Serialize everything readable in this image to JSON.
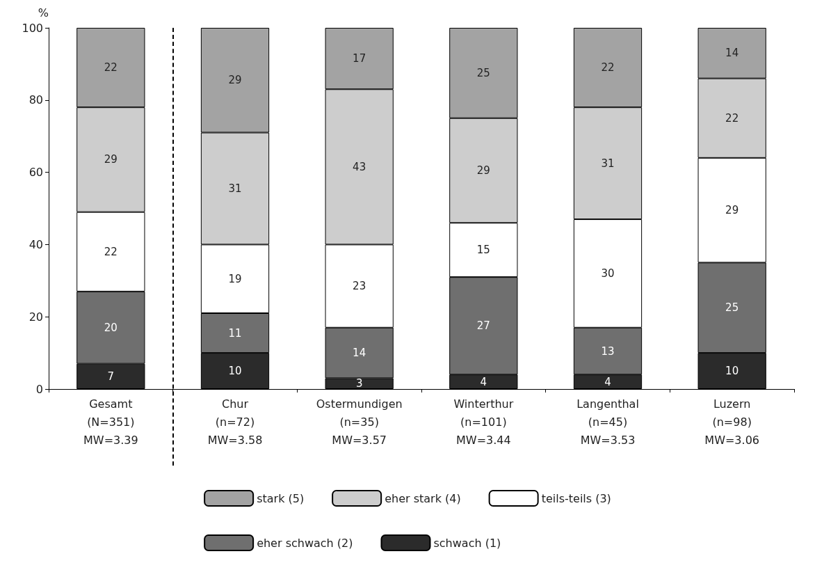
{
  "chart_data": {
    "type": "bar",
    "stacked": true,
    "ylabel": "%",
    "categories": [
      "Gesamt\n(N=351)\nMW=3.39",
      "Chur\n(n=72)\nMW=3.58",
      "Ostermundigen\n(n=35)\nMW=3.57",
      "Winterthur\n(n=101)\nMW=3.44",
      "Langenthal\n(n=45)\nMW=3.53",
      "Luzern\n(n=98)\nMW=3.06"
    ],
    "series": [
      {
        "name": "schwach (1)",
        "color": "#2b2b2b",
        "values": [
          7,
          10,
          3,
          4,
          4,
          10
        ]
      },
      {
        "name": "eher schwach (2)",
        "color": "#6f6f6f",
        "values": [
          20,
          11,
          14,
          27,
          13,
          25
        ]
      },
      {
        "name": "teils-teils (3)",
        "color": "#ffffff",
        "values": [
          22,
          19,
          23,
          15,
          30,
          29
        ]
      },
      {
        "name": "eher stark (4)",
        "color": "#cdcdcd",
        "values": [
          29,
          31,
          43,
          29,
          31,
          22
        ]
      },
      {
        "name": "stark (5)",
        "color": "#a3a3a3",
        "values": [
          22,
          29,
          17,
          25,
          22,
          14
        ]
      }
    ],
    "ylim": [
      0,
      100
    ],
    "yticks": [
      0,
      20,
      40,
      60,
      80,
      100
    ],
    "data_labels": true,
    "grid": false,
    "legend": "bottom"
  }
}
